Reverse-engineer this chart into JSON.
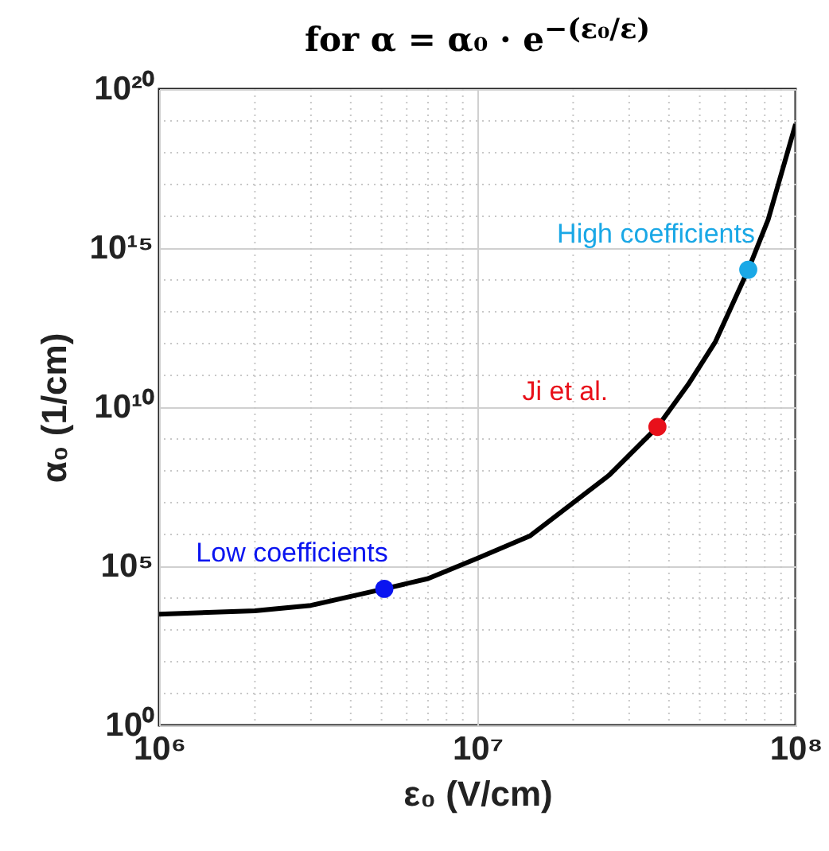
{
  "chart_data": {
    "type": "line",
    "title": "for α = α₀ · e$^{−(ε₀/ε)}$",
    "xlabel": "ε₀ (V/cm)",
    "ylabel": "α₀ (1/cm)",
    "log": "xy",
    "grid": true,
    "xlim": [
      1000000,
      100000000
    ],
    "xticks": [
      {
        "value": 1000000,
        "label": "10⁶"
      },
      {
        "value": 10000000,
        "label": "10⁷"
      },
      {
        "value": 100000000,
        "label": "10⁸"
      }
    ],
    "ylim": [
      1,
      1e+20
    ],
    "yticks": [
      {
        "value": 1,
        "label": "10⁰"
      },
      {
        "value": 100000,
        "label": "10⁵"
      },
      {
        "value": 10000000000.0,
        "label": "10¹⁰"
      },
      {
        "value": 1000000000000000.0,
        "label": "10¹⁵"
      },
      {
        "value": 1e+20,
        "label": "10²⁰"
      }
    ],
    "series": [
      {
        "type": "line",
        "color": "#000000",
        "x": [
          1000000,
          2000000,
          3000000,
          5100000,
          7000000,
          10000000,
          14600000,
          26000000,
          36800000,
          46000000,
          56000000,
          71000000,
          82000000,
          100000000
        ],
        "values": [
          3100,
          4000,
          5900,
          19500,
          41000,
          178000,
          890000,
          74000000,
          2400000000,
          52000000000,
          1150000000000,
          210000000000000,
          7900000000000000,
          7900000000000000000
        ]
      },
      {
        "type": "scatter",
        "name": "Low coefficients",
        "color": "#0a14f0",
        "marker": "circle",
        "x": [
          5100000
        ],
        "values": [
          19500
        ]
      },
      {
        "type": "scatter",
        "name": "Ji et al.",
        "color": "#e8101a",
        "marker": "circle",
        "x": [
          36800000
        ],
        "values": [
          2400000000
        ]
      },
      {
        "type": "scatter",
        "name": "High coefficients",
        "color": "#1aa8e6",
        "marker": "circle",
        "x": [
          71000000
        ],
        "values": [
          210000000000000
        ]
      }
    ]
  }
}
